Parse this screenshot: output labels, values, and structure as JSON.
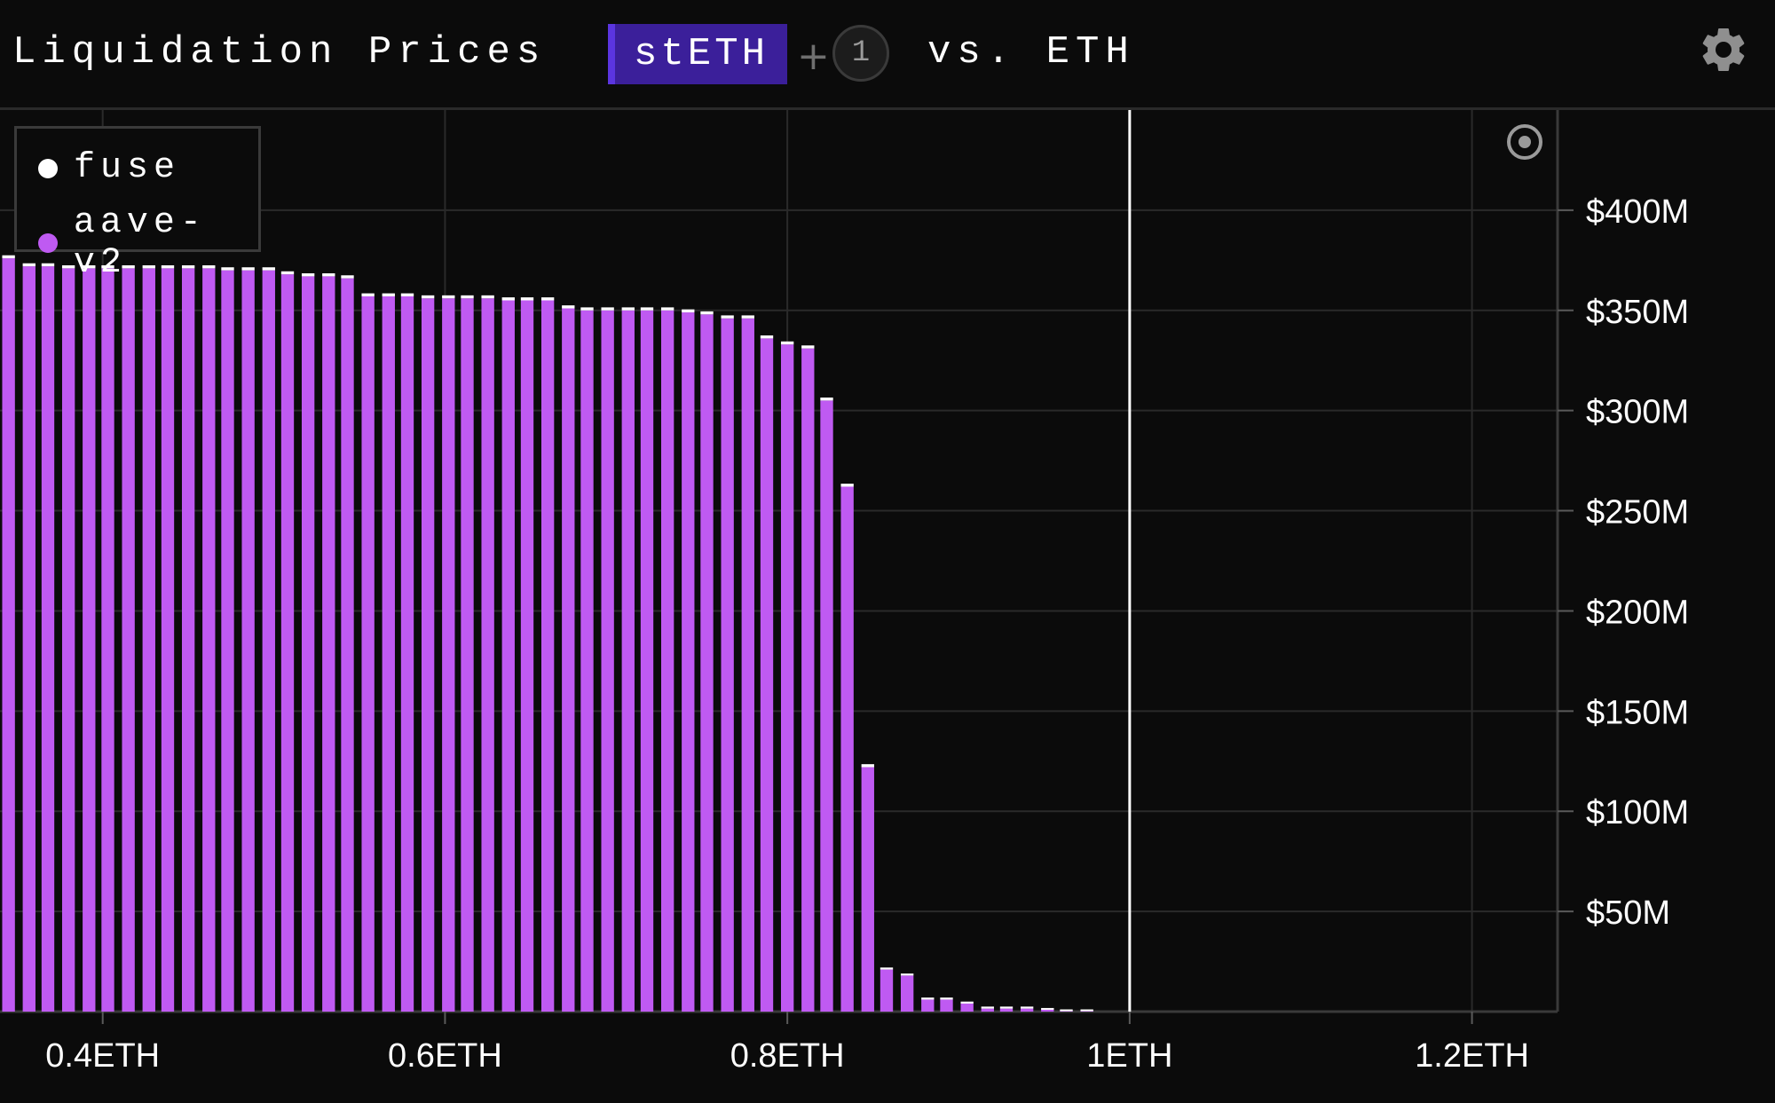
{
  "header": {
    "title": "Liquidation Prices",
    "asset": "stETH",
    "plus": "+",
    "extra_count": "1",
    "vs_label": "vs. ETH",
    "settings_icon": "gear-icon"
  },
  "colors": {
    "background": "#0b0b0b",
    "grid": "#2a2a2a",
    "fuse": "#ffffff",
    "aave": "#bf5af2",
    "asset_chip": "#3b1f9a",
    "current_price_line": "#ffffff"
  },
  "legend": {
    "items": [
      {
        "label": "fuse",
        "color": "#ffffff"
      },
      {
        "label": "aave-v2",
        "color": "#bf5af2"
      }
    ]
  },
  "reset_icon": "target-icon",
  "chart_data": {
    "type": "bar",
    "stacked": true,
    "title": "",
    "xlabel": "",
    "ylabel": "",
    "x_unit": "ETH",
    "xlim": [
      0.34,
      1.25
    ],
    "ylim": [
      0,
      450
    ],
    "x_ticks": [
      0.4,
      0.6,
      0.8,
      1.0,
      1.2
    ],
    "x_tick_labels": [
      "0.4ETH",
      "0.6ETH",
      "0.8ETH",
      "1ETH",
      "1.2ETH"
    ],
    "y_ticks": [
      50,
      100,
      150,
      200,
      250,
      300,
      350,
      400
    ],
    "y_tick_labels": [
      "$50M",
      "$100M",
      "$150M",
      "$200M",
      "$250M",
      "$300M",
      "$350M",
      "$400M"
    ],
    "y_axis_position": "right",
    "current_price_line_x": 1.0,
    "grid": true,
    "legend_position": "top-left",
    "x": [
      0.345,
      0.357,
      0.368,
      0.38,
      0.392,
      0.403,
      0.415,
      0.427,
      0.438,
      0.45,
      0.462,
      0.473,
      0.485,
      0.497,
      0.508,
      0.52,
      0.532,
      0.543,
      0.555,
      0.567,
      0.578,
      0.59,
      0.602,
      0.613,
      0.625,
      0.637,
      0.648,
      0.66,
      0.672,
      0.683,
      0.695,
      0.707,
      0.718,
      0.73,
      0.742,
      0.753,
      0.765,
      0.777,
      0.788,
      0.8,
      0.812,
      0.823,
      0.835,
      0.847,
      0.858,
      0.87,
      0.882,
      0.893,
      0.905,
      0.917,
      0.928,
      0.94,
      0.952,
      0.963,
      0.975
    ],
    "series": [
      {
        "name": "aave-v2",
        "values": [
          376,
          372,
          372,
          371,
          371,
          371,
          371,
          371,
          371,
          371,
          371,
          370,
          370,
          370,
          368,
          367,
          367,
          366,
          357,
          357,
          357,
          356,
          356,
          356,
          356,
          355,
          355,
          355,
          351,
          350,
          350,
          350,
          350,
          350,
          349,
          348,
          346,
          346,
          336,
          333,
          331,
          305,
          262,
          122,
          21,
          18,
          6,
          6,
          4,
          1.5,
          1.5,
          1.5,
          1.5,
          0.8,
          0.8
        ]
      },
      {
        "name": "fuse",
        "values": [
          1.5,
          1.5,
          1.5,
          1.5,
          1.5,
          1.5,
          1.5,
          1.5,
          1.5,
          1.5,
          1.5,
          1.5,
          1.5,
          1.5,
          1.5,
          1.5,
          1.5,
          1.5,
          1.5,
          1.5,
          1.5,
          1.5,
          1.5,
          1.5,
          1.5,
          1.5,
          1.5,
          1.5,
          1.5,
          1.5,
          1.5,
          1.5,
          1.5,
          1.5,
          1.5,
          1.5,
          1.5,
          1.5,
          1.5,
          1.5,
          1.5,
          1.5,
          1.5,
          1.5,
          1.0,
          1.0,
          1.0,
          1.0,
          1.0,
          1.0,
          1.0,
          1.0,
          0.3,
          0.3,
          0.3
        ]
      }
    ]
  }
}
